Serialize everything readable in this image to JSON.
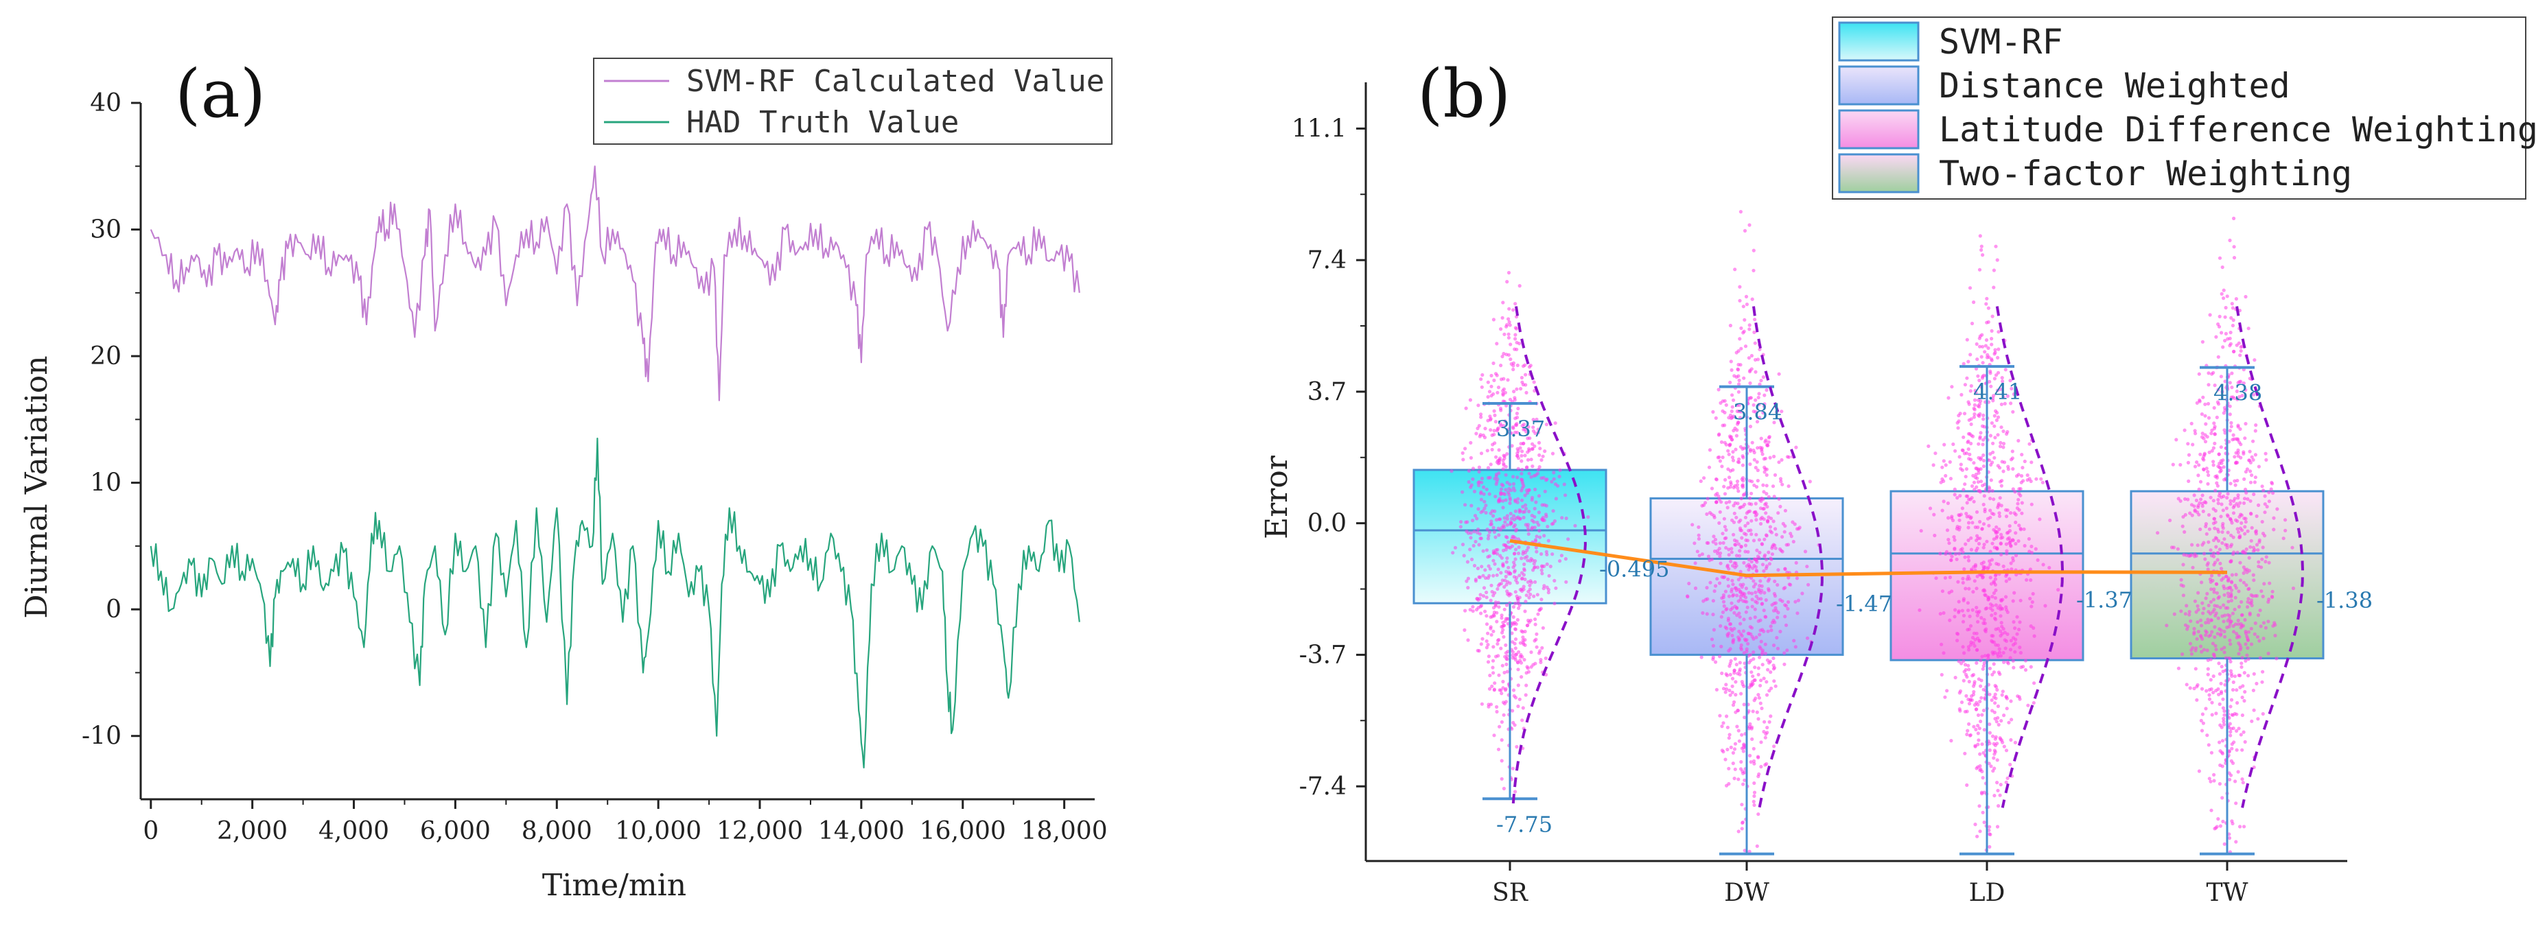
{
  "chart_data": [
    {
      "type": "line",
      "panel_label": "(a)",
      "xlabel": "Time/min",
      "ylabel": "Diurnal Variation",
      "xlim": [
        -200,
        18600
      ],
      "ylim": [
        -15,
        40
      ],
      "xticks": [
        0,
        2000,
        4000,
        6000,
        8000,
        10000,
        12000,
        14000,
        16000,
        18000
      ],
      "xtick_labels": [
        "0",
        "2,000",
        "4,000",
        "6,000",
        "8,000",
        "10,000",
        "12,000",
        "14,000",
        "16,000",
        "18,000"
      ],
      "yticks": [
        -10,
        0,
        10,
        20,
        30,
        40
      ],
      "ytick_labels": [
        "-10",
        "0",
        "10",
        "20",
        "30",
        "40"
      ],
      "legend_position": "top-right",
      "series": [
        {
          "name": "SVM-RF Calculated Value",
          "color": "#c27fd1",
          "x": [
            0,
            300,
            500,
            700,
            900,
            1100,
            1300,
            1500,
            1700,
            1900,
            2100,
            2300,
            2450,
            2550,
            2700,
            2900,
            3100,
            3300,
            3500,
            3700,
            3900,
            4100,
            4250,
            4400,
            4500,
            4650,
            4800,
            5000,
            5200,
            5400,
            5500,
            5600,
            5800,
            6000,
            6200,
            6400,
            6600,
            6800,
            7000,
            7200,
            7400,
            7600,
            7800,
            8000,
            8200,
            8400,
            8600,
            8750,
            8900,
            9100,
            9300,
            9500,
            9700,
            9800,
            9950,
            10100,
            10300,
            10500,
            10700,
            10900,
            11100,
            11200,
            11300,
            11500,
            11700,
            11900,
            12100,
            12300,
            12500,
            12700,
            12900,
            13100,
            13300,
            13500,
            13700,
            13900,
            14000,
            14100,
            14300,
            14500,
            14700,
            14900,
            15100,
            15300,
            15500,
            15700,
            15900,
            16100,
            16300,
            16500,
            16700,
            16800,
            16900,
            17100,
            17300,
            17500,
            17700,
            17900,
            18100,
            18300
          ],
          "y": [
            30,
            28,
            26,
            27,
            28,
            25.5,
            28,
            27,
            28.5,
            27,
            29,
            26,
            22.5,
            26,
            28.5,
            29,
            28,
            29.5,
            27,
            28,
            27.5,
            26,
            22.5,
            28,
            31,
            30,
            32,
            27,
            21.5,
            28,
            31.5,
            22,
            28,
            32,
            29,
            27,
            28,
            30.5,
            24,
            28,
            30,
            29,
            31,
            26.5,
            32,
            24,
            30,
            35,
            28,
            30,
            28.5,
            26,
            21,
            18,
            29,
            30,
            28,
            29,
            27,
            25,
            27,
            16.5,
            28,
            30,
            29.5,
            28.5,
            27,
            26,
            30,
            28,
            29,
            30,
            28.5,
            29,
            27,
            24,
            19.5,
            28,
            30,
            28,
            29,
            27,
            26,
            30,
            28,
            22,
            27,
            29.5,
            30,
            28.5,
            27,
            21.5,
            28,
            29,
            28,
            30,
            27.5,
            28,
            27.5,
            25
          ]
        },
        {
          "name": "HAD Truth Value",
          "color": "#27a57d",
          "x": [
            0,
            200,
            400,
            600,
            800,
            1000,
            1200,
            1400,
            1600,
            1800,
            2000,
            2200,
            2350,
            2450,
            2600,
            2800,
            3000,
            3200,
            3400,
            3600,
            3800,
            4000,
            4200,
            4350,
            4500,
            4700,
            4900,
            5100,
            5300,
            5400,
            5600,
            5800,
            6000,
            6200,
            6400,
            6600,
            6800,
            7000,
            7200,
            7400,
            7600,
            7800,
            8000,
            8200,
            8350,
            8500,
            8700,
            8800,
            8900,
            9100,
            9300,
            9500,
            9700,
            9800,
            10000,
            10200,
            10400,
            10600,
            10800,
            11000,
            11150,
            11250,
            11400,
            11600,
            11800,
            12000,
            12200,
            12400,
            12600,
            12800,
            13000,
            13200,
            13400,
            13600,
            13800,
            13950,
            14050,
            14200,
            14400,
            14600,
            14800,
            15000,
            15200,
            15400,
            15600,
            15700,
            15800,
            16000,
            16200,
            16400,
            16600,
            16800,
            16900,
            17100,
            17300,
            17500,
            17700,
            17900,
            18100,
            18300
          ],
          "y": [
            5,
            3,
            0,
            2,
            3.5,
            1,
            4,
            2,
            5,
            3,
            4,
            1,
            -4.5,
            1,
            3,
            4,
            2,
            5,
            1.5,
            3,
            4.5,
            1,
            -3,
            6,
            7,
            3,
            5,
            -1,
            -6,
            2,
            5,
            -2,
            6,
            3,
            5,
            -3,
            6,
            1,
            7,
            -3,
            8,
            -1,
            8,
            -7.5,
            4,
            7,
            5,
            13.5,
            2,
            6,
            -1,
            5,
            -5,
            -2,
            7,
            3,
            6,
            1,
            3,
            0,
            -10,
            2,
            8,
            5,
            3,
            2,
            1,
            5,
            3,
            5,
            4,
            2,
            6,
            3,
            0,
            -8,
            -12.5,
            2,
            6,
            3,
            5,
            2,
            0,
            5,
            3,
            -6,
            -9.5,
            3,
            6,
            5,
            2,
            -3,
            -7,
            2,
            5,
            3,
            7,
            3,
            5,
            -1
          ]
        }
      ]
    },
    {
      "type": "box",
      "panel_label": "(b)",
      "xlabel": "",
      "ylabel": "Error",
      "ylim": [
        -9.5,
        12.4
      ],
      "yticks": [
        -7.4,
        -3.7,
        0.0,
        3.7,
        7.4,
        11.1
      ],
      "ytick_labels": [
        "-7.4",
        "-3.7",
        "0.0",
        "3.7",
        "7.4",
        "11.1"
      ],
      "categories": [
        "SR",
        "DW",
        "LD",
        "TW"
      ],
      "legend_position": "top-right",
      "series": [
        {
          "name": "SVM-RF",
          "color_top": "#3ee3f2",
          "color_bottom": "#e8fbfd",
          "median": -0.2,
          "mean": -0.495,
          "q1": -2.25,
          "q3": 1.5,
          "whisker_low": -7.75,
          "whisker_high": 3.37,
          "mean_label": "-0.495",
          "upper_label": "3.37",
          "lower_label": "-7.75"
        },
        {
          "name": "Distance Weighted",
          "color_top": "#f4eefb",
          "color_bottom": "#a8b8f5",
          "median": -1.0,
          "mean": -1.47,
          "q1": -3.7,
          "q3": 0.7,
          "whisker_low": -9.3,
          "whisker_high": 3.84,
          "mean_label": "-1.47",
          "upper_label": "3.84",
          "lower_label": ""
        },
        {
          "name": "Latitude Difference Weighting",
          "color_top": "#fbe3f7",
          "color_bottom": "#f48de3",
          "median": -0.85,
          "mean": -1.37,
          "q1": -3.85,
          "q3": 0.9,
          "whisker_low": -9.3,
          "whisker_high": 4.41,
          "mean_label": "-1.37",
          "upper_label": "4.41",
          "lower_label": ""
        },
        {
          "name": "Two-factor Weighting",
          "color_top": "#fbe3f7",
          "color_bottom": "#9fcf9f",
          "median": -0.85,
          "mean": -1.38,
          "q1": -3.8,
          "q3": 0.9,
          "whisker_low": -9.3,
          "whisker_high": 4.38,
          "mean_label": "-1.38",
          "upper_label": "4.38",
          "lower_label": ""
        }
      ]
    }
  ]
}
